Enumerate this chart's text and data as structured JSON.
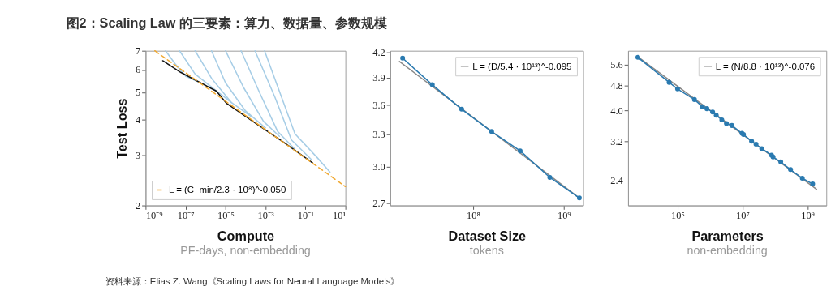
{
  "chart_data": [
    {
      "type": "line",
      "title": "图2：Scaling Law 的三要素：算力、数据量、参数规模",
      "xlabel": "Compute",
      "ylabel": "Test Loss",
      "annotations": [
        "PF-days, non-embedding",
        "资料来源：Elias Z. Wang《Scaling Laws for Neural Language Models》"
      ],
      "log": "xy",
      "grid": false,
      "legend": "bottom left",
      "xlim": [
        1e-09,
        10
      ],
      "ylim": [
        2,
        7
      ],
      "xticks": [
        {
          "value": 1e-09,
          "label": "10⁻⁹"
        },
        {
          "value": 1e-07,
          "label": "10⁻⁷"
        },
        {
          "value": 1e-05,
          "label": "10⁻⁵"
        },
        {
          "value": 0.001,
          "label": "10⁻³"
        },
        {
          "value": 0.1,
          "label": "10⁻¹"
        },
        {
          "value": 10,
          "label": "10¹"
        }
      ],
      "yticks": [
        2,
        3,
        4,
        5,
        6,
        7
      ],
      "series": [
        {
          "color": "#a6cde6",
          "x": [
            1e-08,
            3e-08,
            1e-07,
            1e-06
          ],
          "values": [
            7,
            6.3,
            5.7,
            5.3
          ]
        },
        {
          "color": "#a6cde6",
          "x": [
            5e-08,
            3e-07,
            3e-06,
            2e-05
          ],
          "values": [
            7,
            5.8,
            5.1,
            4.6
          ]
        },
        {
          "color": "#a6cde6",
          "x": [
            3e-07,
            2e-06,
            2e-05,
            0.0002
          ],
          "values": [
            7,
            5.6,
            4.6,
            4.1
          ]
        },
        {
          "color": "#a6cde6",
          "x": [
            2e-06,
            1e-05,
            0.0001,
            0.001
          ],
          "values": [
            7,
            5.4,
            4.3,
            3.75
          ]
        },
        {
          "color": "#a6cde6",
          "x": [
            1e-05,
            8e-05,
            0.0008,
            0.005
          ],
          "values": [
            7,
            5.2,
            3.95,
            3.5
          ]
        },
        {
          "color": "#a6cde6",
          "x": [
            6e-05,
            0.0005,
            0.004,
            0.03
          ],
          "values": [
            7,
            5.0,
            3.65,
            3.15
          ]
        },
        {
          "color": "#a6cde6",
          "x": [
            0.0003,
            0.003,
            0.02,
            0.2
          ],
          "values": [
            7,
            4.8,
            3.4,
            2.9
          ]
        },
        {
          "color": "#a6cde6",
          "x": [
            0.0009,
            0.03,
            0.4,
            1.7
          ],
          "values": [
            7,
            3.57,
            2.94,
            2.62
          ]
        },
        {
          "color": "#111111",
          "x": [
            7.2e-09,
            5.9e-08,
            3.5e-06,
            1.1e-05,
            0.0005,
            0.009,
            0.23
          ],
          "values": [
            6.46,
            5.87,
            5.05,
            4.58,
            3.81,
            3.32,
            2.82
          ]
        },
        {
          "name": "L = (C_min/2.3 · 10⁸)^-0.050",
          "color": "#f0a830",
          "line_style": "dashed",
          "x": [
            2.9e-09,
            10
          ],
          "values": [
            7,
            2.33
          ]
        }
      ]
    },
    {
      "type": "line",
      "xlabel": "Dataset Size",
      "annotations": [
        "tokens"
      ],
      "log": "xy",
      "grid": false,
      "legend": "top right",
      "xlim": [
        12300000.0,
        1630000000.0
      ],
      "ylim": [
        2.68,
        4.22
      ],
      "xticks": [
        {
          "value": 100000000.0,
          "label": "10⁸"
        },
        {
          "value": 1000000000.0,
          "label": "10⁹"
        }
      ],
      "yticks": [
        2.7,
        {
          "value": 3,
          "label": "3.0"
        },
        3.3,
        3.6,
        3.9,
        4.2
      ],
      "series": [
        {
          "name": "L = (D/5.4 · 10¹³)^-0.095",
          "color": "#888888",
          "x": [
            15500000.0,
            1480000000.0
          ],
          "values": [
            4.09,
            2.74
          ]
        },
        {
          "color": "#2a7ab0",
          "marker": "circle",
          "x": [
            16800000.0,
            35600000.0,
            75000000.0,
            160000000.0,
            330000000.0,
            700000000.0,
            1480000000.0
          ],
          "values": [
            4.13,
            3.82,
            3.555,
            3.33,
            3.146,
            2.91,
            2.74
          ]
        }
      ]
    },
    {
      "type": "line",
      "xlabel": "Parameters",
      "annotations": [
        "non-embedding"
      ],
      "log": "xy",
      "grid": false,
      "legend": "top right",
      "xlim": [
        3000.0,
        3800000000.0
      ],
      "ylim": [
        2.0,
        6.2
      ],
      "xticks": [
        {
          "value": 100000.0,
          "label": "10⁵"
        },
        {
          "value": 10000000.0,
          "label": "10⁷"
        },
        {
          "value": 1000000000.0,
          "label": "10⁹"
        }
      ],
      "yticks": [
        2.4,
        3.2,
        {
          "value": 4,
          "label": "4.0"
        },
        4.8,
        5.6
      ],
      "series": [
        {
          "name": "L = (N/8.8 · 10¹³)^-0.076",
          "color": "#888888",
          "x": [
            6000.0,
            1900000000.0
          ],
          "values": [
            5.93,
            2.25
          ]
        },
        {
          "color": "#2a7ab0",
          "marker": "circle",
          "x": [
            6000.0,
            55000.0,
            100000.0,
            330000.0,
            580000.0,
            800000.0,
            1200000.0,
            1550000.0,
            2300000.0,
            3200000.0,
            4700000.0,
            9600000.0,
            10700000.0,
            19000000.0,
            26000000.0,
            39000000.0,
            78000000.0,
            87000000.0,
            150000000.0,
            300000000.0,
            690000000.0,
            1440000000.0
          ],
          "values": [
            5.91,
            4.92,
            4.69,
            4.34,
            4.12,
            4.06,
            3.96,
            3.87,
            3.74,
            3.64,
            3.59,
            3.39,
            3.36,
            3.2,
            3.13,
            3.03,
            2.89,
            2.85,
            2.75,
            2.6,
            2.44,
            2.34
          ]
        }
      ]
    }
  ]
}
